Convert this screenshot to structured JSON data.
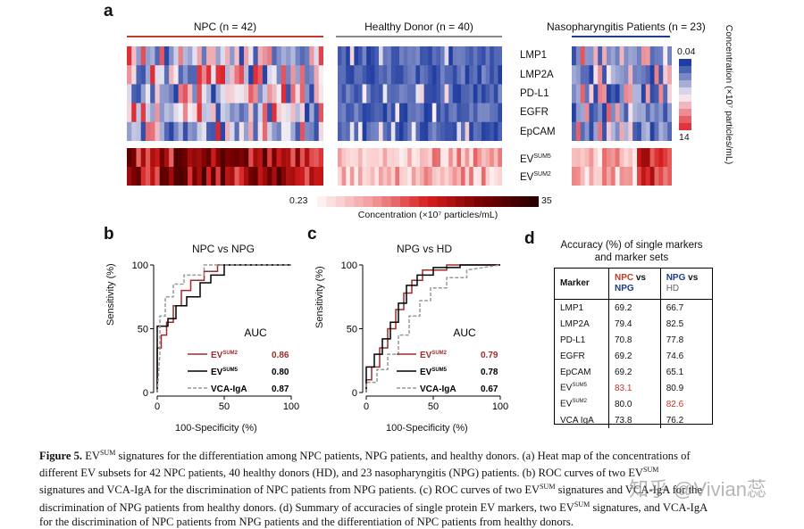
{
  "panel_a": {
    "letter": "a",
    "groups": [
      {
        "label": "NPC (n = 42)",
        "color": "#c0392b"
      },
      {
        "label": "Healthy Donor (n = 40)",
        "color": "#888888"
      },
      {
        "label": "Nasopharyngitis Patients (n = 23)",
        "color": "#1f3c88"
      }
    ],
    "rows_top": [
      "LMP1",
      "LMP2A",
      "PD-L1",
      "EGFR",
      "EpCAM"
    ],
    "rows_bottom": [
      {
        "base": "EV",
        "sup": "SUM5"
      },
      {
        "base": "EV",
        "sup": "SUM2"
      }
    ],
    "legend_top": {
      "min": "0.04",
      "max": "14",
      "title": "Concentration (×10⁷ particles/mL)"
    },
    "legend_bottom": {
      "min": "0.23",
      "max": "35",
      "title": "Concentration (×10⁷ particles/mL)"
    }
  },
  "panel_b": {
    "letter": "b",
    "title": "NPC vs NPG",
    "ylabel": "Sensitivity (%)",
    "xlabel": "100-Specificity (%)",
    "yticks": [
      "0",
      "50",
      "100"
    ],
    "xticks": [
      "0",
      "50",
      "100"
    ],
    "auc_header": "AUC",
    "legend": [
      {
        "base": "EV",
        "sup": "SUM2",
        "auc": "0.86",
        "color": "#9b2d2d",
        "dash": false
      },
      {
        "base": "EV",
        "sup": "SUM5",
        "auc": "0.80",
        "color": "#000000",
        "dash": false
      },
      {
        "base": "VCA-IgA",
        "sup": "",
        "auc": "0.87",
        "color": "#999999",
        "dash": true
      }
    ]
  },
  "panel_c": {
    "letter": "c",
    "title": "NPG vs HD",
    "ylabel": "Sensitivity (%)",
    "xlabel": "100-Specificity (%)",
    "yticks": [
      "0",
      "50",
      "100"
    ],
    "xticks": [
      "0",
      "50",
      "100"
    ],
    "auc_header": "AUC",
    "legend": [
      {
        "base": "EV",
        "sup": "SUM2",
        "auc": "0.79",
        "color": "#9b2d2d",
        "dash": false
      },
      {
        "base": "EV",
        "sup": "SUM5",
        "auc": "0.78",
        "color": "#000000",
        "dash": false
      },
      {
        "base": "VCA-IgA",
        "sup": "",
        "auc": "0.67",
        "color": "#999999",
        "dash": true
      }
    ]
  },
  "panel_d": {
    "letter": "d",
    "title_line1": "Accuracy (%) of single markers",
    "title_line2": "and marker sets",
    "header": {
      "marker": "Marker",
      "c1a": "NPC",
      "c1b": "vs",
      "c1c": "NPG",
      "c2a": "NPG",
      "c2b": "vs",
      "c2c": "HD"
    },
    "rows": [
      {
        "marker": "LMP1",
        "sup": "",
        "v1": "69.2",
        "v2": "66.7",
        "h1": false,
        "h2": false
      },
      {
        "marker": "LMP2A",
        "sup": "",
        "v1": "79.4",
        "v2": "82.5",
        "h1": false,
        "h2": false
      },
      {
        "marker": "PD-L1",
        "sup": "",
        "v1": "70.8",
        "v2": "77.8",
        "h1": false,
        "h2": false
      },
      {
        "marker": "EGFR",
        "sup": "",
        "v1": "69.2",
        "v2": "74.6",
        "h1": false,
        "h2": false
      },
      {
        "marker": "EpCAM",
        "sup": "",
        "v1": "69.2",
        "v2": "65.1",
        "h1": false,
        "h2": false
      },
      {
        "marker": "EV",
        "sup": "SUM5",
        "v1": "83.1",
        "v2": "80.9",
        "h1": true,
        "h2": false
      },
      {
        "marker": "EV",
        "sup": "SUM2",
        "v1": "80.0",
        "v2": "82.6",
        "h1": false,
        "h2": true
      },
      {
        "marker": "VCA IgA",
        "sup": "",
        "v1": "73.8",
        "v2": "76.2",
        "h1": false,
        "h2": false
      }
    ]
  },
  "colors": {
    "red": "#c0392b",
    "blue": "#1f3c88",
    "dark_red": "#9b2d2d"
  },
  "caption": {
    "fig_label": "Figure 5.",
    "l1a": " EV",
    "l1sup": "SUM",
    "l1b": " signatures for the differentiation among NPC patients, NPG patients, and healthy donors. (a) Heat map of the concentrations of",
    "l2": "different EV subsets for 42 NPC patients, 40 healthy donors (HD), and 23 nasopharyngitis (NPG) patients. (b) ROC curves of two EV",
    "l2sup": "SUM",
    "l3a": "signatures and VCA-IgA for the discrimination of NPC patients from NPG patients. (c) ROC curves of two EV",
    "l3sup": "SUM",
    "l3b": " signatures and VCA-IgA for the",
    "l4a": "discrimination of NPG patients from healthy donors. (d) Summary of accuracies of single protein EV markers, two EV",
    "l4sup": "SUM",
    "l4b": " signatures, and VCA-IgA",
    "l5": "for the discrimination of NPC patients from NPG patients and the differentiation of NPC patients from healthy donors."
  },
  "watermark": "知乎 @Vivian蕊"
}
